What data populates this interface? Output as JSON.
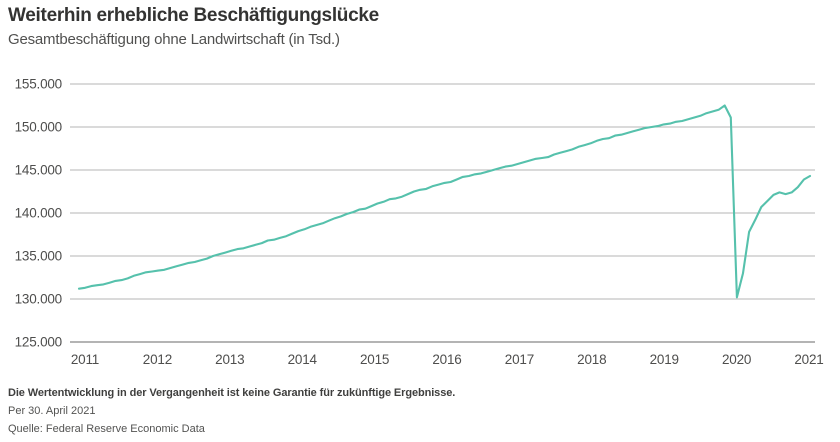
{
  "chart_data": {
    "type": "line",
    "title": "Weiterhin erhebliche Beschäftigungslücke",
    "subtitle": "Gesamtbeschäftigung ohne Landwirtschaft (in Tsd.)",
    "xlabel": "",
    "ylabel": "",
    "grid": true,
    "legend": "none",
    "y_axis": {
      "min": 125000,
      "max": 155000,
      "tick_interval": 5000,
      "tick_values": [
        155000,
        150000,
        145000,
        140000,
        135000,
        130000,
        125000
      ],
      "tick_labels": [
        "155.000",
        "150.000",
        "145.000",
        "140.000",
        "135.000",
        "130.000",
        "125.000"
      ]
    },
    "x_axis": {
      "tick_labels": [
        "2011",
        "2012",
        "2013",
        "2014",
        "2015",
        "2016",
        "2017",
        "2018",
        "2019",
        "2020",
        "2021"
      ]
    },
    "series": [
      {
        "name": "Gesamtbeschäftigung ohne Landwirtschaft (in Tsd.)",
        "frequency": "monthly",
        "start_month": "2011-04",
        "end_month": "2021-04",
        "color": "#56c1ac",
        "values": [
          131200,
          131300,
          131500,
          131600,
          131700,
          131900,
          132100,
          132200,
          132400,
          132700,
          132900,
          133100,
          133200,
          133300,
          133400,
          133600,
          133800,
          134000,
          134200,
          134300,
          134500,
          134700,
          135000,
          135200,
          135400,
          135600,
          135800,
          135900,
          136100,
          136300,
          136500,
          136800,
          136900,
          137100,
          137300,
          137600,
          137900,
          138100,
          138400,
          138600,
          138800,
          139100,
          139400,
          139600,
          139900,
          140100,
          140400,
          140500,
          140800,
          141100,
          141300,
          141600,
          141700,
          141900,
          142200,
          142500,
          142700,
          142800,
          143100,
          143300,
          143500,
          143600,
          143900,
          144200,
          144300,
          144500,
          144600,
          144800,
          145000,
          145200,
          145400,
          145500,
          145700,
          145900,
          146100,
          146300,
          146400,
          146500,
          146800,
          147000,
          147200,
          147400,
          147700,
          147900,
          148100,
          148400,
          148600,
          148700,
          149000,
          149100,
          149300,
          149500,
          149700,
          149900,
          150000,
          150100,
          150300,
          150400,
          150600,
          150700,
          150900,
          151100,
          151300,
          151600,
          151800,
          152000,
          152500,
          151100,
          130200,
          133000,
          137800,
          139200,
          140700,
          141400,
          142100,
          142400,
          142200,
          142400,
          143000,
          143900,
          144300
        ]
      }
    ]
  },
  "footer": {
    "disclaimer": "Die Wertentwicklung in der Vergangenheit ist keine Garantie für zukünftige Ergebnisse.",
    "as_of": "Per 30. April 2021",
    "source": "Quelle: Federal Reserve Economic Data"
  },
  "colors": {
    "background": "#ffffff",
    "line": "#56c1ac",
    "gridline": "#b5b5b5",
    "bottom_axis_line": "#9b9b9b",
    "title_text": "#333332",
    "subtitle_text": "#515150",
    "axis_tick_text": "#4e4e4d",
    "disclaimer_text": "#3f3f3e",
    "footer_text": "#535352"
  }
}
